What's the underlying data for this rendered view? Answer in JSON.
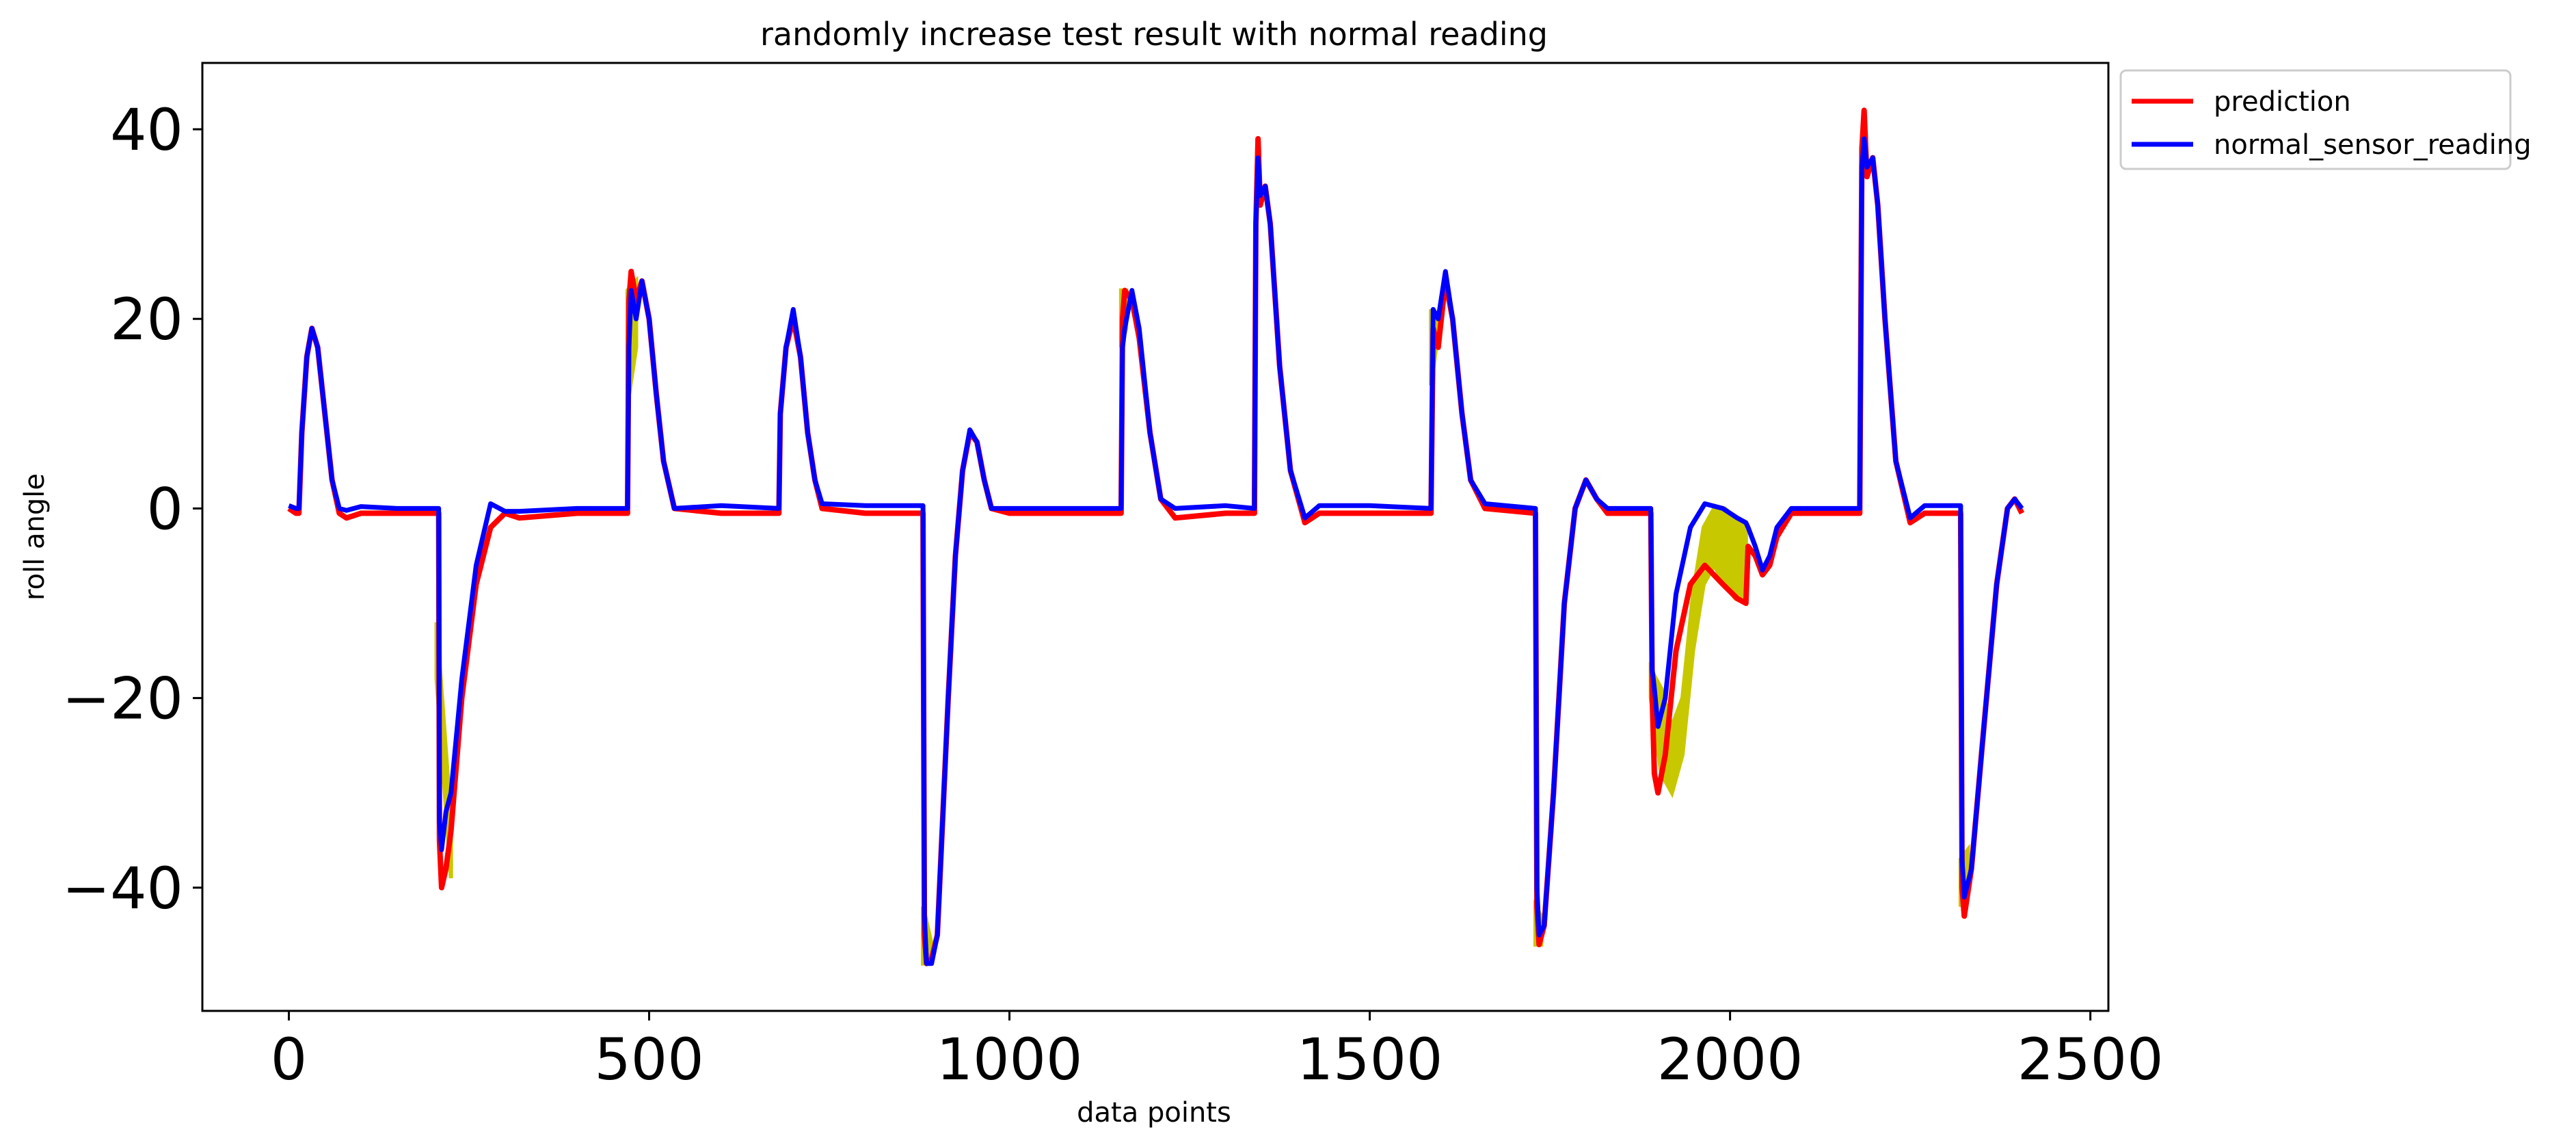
{
  "chart_data": {
    "type": "line",
    "title": "randomly increase test result with normal reading",
    "xlabel": "data points",
    "ylabel": "roll angle",
    "xlim": [
      -120,
      2525
    ],
    "ylim": [
      -53,
      47
    ],
    "xticks": [
      0,
      500,
      1000,
      1500,
      2000,
      2500
    ],
    "yticks": [
      40,
      20,
      0,
      -20,
      -40
    ],
    "xtick_labels": [
      "0",
      "500",
      "1000",
      "1500",
      "2000",
      "2500"
    ],
    "ytick_labels": [
      "40",
      "20",
      "0",
      "−20",
      "−40"
    ],
    "grid": false,
    "legend_position": "outside top-right",
    "colors": {
      "prediction": "#ff0000",
      "normal_sensor_reading": "#0000ff",
      "test_band": "#c8c800"
    },
    "series": [
      {
        "name": "prediction",
        "color": "#ff0000",
        "points": [
          [
            0,
            0
          ],
          [
            10,
            -0.5
          ],
          [
            14,
            -0.5
          ],
          [
            18,
            8
          ],
          [
            25,
            16
          ],
          [
            32,
            19
          ],
          [
            40,
            17
          ],
          [
            50,
            10
          ],
          [
            60,
            3
          ],
          [
            70,
            -0.5
          ],
          [
            80,
            -1
          ],
          [
            100,
            -0.5
          ],
          [
            150,
            -0.5
          ],
          [
            200,
            -0.5
          ],
          [
            208,
            -0.5
          ],
          [
            209,
            -35
          ],
          [
            212,
            -40
          ],
          [
            218,
            -38
          ],
          [
            225,
            -34
          ],
          [
            240,
            -20
          ],
          [
            260,
            -8
          ],
          [
            280,
            -2
          ],
          [
            300,
            -0.5
          ],
          [
            320,
            -1
          ],
          [
            400,
            -0.5
          ],
          [
            470,
            -0.5
          ],
          [
            472,
            22
          ],
          [
            475,
            25
          ],
          [
            482,
            22
          ],
          [
            490,
            24
          ],
          [
            500,
            20
          ],
          [
            510,
            12
          ],
          [
            520,
            5
          ],
          [
            535,
            0
          ],
          [
            600,
            -0.5
          ],
          [
            680,
            -0.5
          ],
          [
            682,
            10
          ],
          [
            690,
            17
          ],
          [
            700,
            20
          ],
          [
            710,
            16
          ],
          [
            720,
            8
          ],
          [
            730,
            3
          ],
          [
            740,
            0
          ],
          [
            800,
            -0.5
          ],
          [
            880,
            -0.5
          ],
          [
            882,
            -45
          ],
          [
            885,
            -48
          ],
          [
            892,
            -47.5
          ],
          [
            900,
            -45
          ],
          [
            915,
            -20
          ],
          [
            925,
            -5
          ],
          [
            935,
            4
          ],
          [
            945,
            8
          ],
          [
            955,
            7
          ],
          [
            965,
            3
          ],
          [
            975,
            0
          ],
          [
            1000,
            -0.5
          ],
          [
            1100,
            -0.5
          ],
          [
            1155,
            -0.5
          ],
          [
            1157,
            20
          ],
          [
            1160,
            23
          ],
          [
            1170,
            22
          ],
          [
            1180,
            18
          ],
          [
            1195,
            8
          ],
          [
            1210,
            1
          ],
          [
            1230,
            -1
          ],
          [
            1300,
            -0.5
          ],
          [
            1340,
            -0.5
          ],
          [
            1342,
            30
          ],
          [
            1345,
            39
          ],
          [
            1348,
            32
          ],
          [
            1355,
            34
          ],
          [
            1362,
            30
          ],
          [
            1375,
            15
          ],
          [
            1390,
            4
          ],
          [
            1410,
            -1.5
          ],
          [
            1430,
            -0.5
          ],
          [
            1500,
            -0.5
          ],
          [
            1585,
            -0.5
          ],
          [
            1588,
            19
          ],
          [
            1595,
            17
          ],
          [
            1605,
            24
          ],
          [
            1615,
            20
          ],
          [
            1628,
            10
          ],
          [
            1640,
            3
          ],
          [
            1660,
            0
          ],
          [
            1730,
            -0.5
          ],
          [
            1732,
            -42
          ],
          [
            1735,
            -46
          ],
          [
            1742,
            -44
          ],
          [
            1755,
            -30
          ],
          [
            1770,
            -10
          ],
          [
            1785,
            0
          ],
          [
            1800,
            3
          ],
          [
            1815,
            1
          ],
          [
            1830,
            -0.5
          ],
          [
            1880,
            -0.5
          ],
          [
            1890,
            -0.5
          ],
          [
            1892,
            -20
          ],
          [
            1895,
            -28
          ],
          [
            1900,
            -30
          ],
          [
            1910,
            -26
          ],
          [
            1925,
            -15
          ],
          [
            1945,
            -8
          ],
          [
            1965,
            -6
          ],
          [
            1990,
            -8
          ],
          [
            2010,
            -9.5
          ],
          [
            2022,
            -10
          ],
          [
            2025,
            -4
          ],
          [
            2035,
            -5
          ],
          [
            2045,
            -7
          ],
          [
            2055,
            -6
          ],
          [
            2065,
            -3
          ],
          [
            2085,
            -0.5
          ],
          [
            2100,
            -0.5
          ],
          [
            2180,
            -0.5
          ],
          [
            2183,
            38
          ],
          [
            2186,
            42
          ],
          [
            2190,
            35
          ],
          [
            2198,
            37
          ],
          [
            2205,
            32
          ],
          [
            2215,
            20
          ],
          [
            2230,
            5
          ],
          [
            2250,
            -1.5
          ],
          [
            2270,
            -0.5
          ],
          [
            2320,
            -0.5
          ],
          [
            2322,
            -40
          ],
          [
            2325,
            -43
          ],
          [
            2335,
            -38
          ],
          [
            2350,
            -25
          ],
          [
            2370,
            -8
          ],
          [
            2385,
            0
          ],
          [
            2395,
            1
          ],
          [
            2405,
            -0.5
          ]
        ]
      },
      {
        "name": "normal_sensor_reading",
        "color": "#0000ff",
        "points": [
          [
            0,
            0.3
          ],
          [
            10,
            0
          ],
          [
            14,
            0
          ],
          [
            18,
            8
          ],
          [
            25,
            16
          ],
          [
            32,
            19
          ],
          [
            40,
            17
          ],
          [
            50,
            10
          ],
          [
            60,
            3
          ],
          [
            70,
            0
          ],
          [
            80,
            -0.2
          ],
          [
            100,
            0.2
          ],
          [
            150,
            0
          ],
          [
            200,
            0
          ],
          [
            208,
            0
          ],
          [
            209,
            -33
          ],
          [
            212,
            -36
          ],
          [
            218,
            -32
          ],
          [
            225,
            -30
          ],
          [
            240,
            -18
          ],
          [
            260,
            -6
          ],
          [
            280,
            0.5
          ],
          [
            300,
            -0.3
          ],
          [
            320,
            -0.3
          ],
          [
            400,
            0
          ],
          [
            470,
            0
          ],
          [
            472,
            17
          ],
          [
            475,
            23
          ],
          [
            482,
            20
          ],
          [
            490,
            24
          ],
          [
            500,
            20
          ],
          [
            510,
            12
          ],
          [
            520,
            5
          ],
          [
            535,
            0
          ],
          [
            600,
            0.3
          ],
          [
            680,
            0
          ],
          [
            682,
            10
          ],
          [
            690,
            17
          ],
          [
            700,
            21
          ],
          [
            710,
            16
          ],
          [
            720,
            8
          ],
          [
            730,
            3
          ],
          [
            740,
            0.5
          ],
          [
            800,
            0.3
          ],
          [
            880,
            0.3
          ],
          [
            882,
            -43
          ],
          [
            885,
            -48
          ],
          [
            892,
            -48
          ],
          [
            900,
            -45
          ],
          [
            915,
            -20
          ],
          [
            925,
            -5
          ],
          [
            935,
            4
          ],
          [
            945,
            8.3
          ],
          [
            955,
            7
          ],
          [
            965,
            3
          ],
          [
            975,
            0
          ],
          [
            1000,
            0
          ],
          [
            1100,
            0
          ],
          [
            1155,
            0
          ],
          [
            1157,
            17
          ],
          [
            1160,
            19
          ],
          [
            1170,
            23
          ],
          [
            1180,
            19
          ],
          [
            1195,
            8
          ],
          [
            1210,
            1
          ],
          [
            1230,
            0
          ],
          [
            1300,
            0.3
          ],
          [
            1340,
            0
          ],
          [
            1342,
            30
          ],
          [
            1345,
            37
          ],
          [
            1348,
            33
          ],
          [
            1355,
            34
          ],
          [
            1362,
            30
          ],
          [
            1375,
            15
          ],
          [
            1390,
            4
          ],
          [
            1410,
            -1
          ],
          [
            1430,
            0.3
          ],
          [
            1500,
            0.3
          ],
          [
            1585,
            0
          ],
          [
            1588,
            21
          ],
          [
            1595,
            20
          ],
          [
            1605,
            25
          ],
          [
            1615,
            20
          ],
          [
            1628,
            10
          ],
          [
            1640,
            3
          ],
          [
            1660,
            0.5
          ],
          [
            1730,
            0
          ],
          [
            1732,
            -40
          ],
          [
            1735,
            -45
          ],
          [
            1742,
            -44
          ],
          [
            1755,
            -30
          ],
          [
            1770,
            -10
          ],
          [
            1785,
            0
          ],
          [
            1800,
            3
          ],
          [
            1815,
            1
          ],
          [
            1830,
            0
          ],
          [
            1880,
            0
          ],
          [
            1890,
            0
          ],
          [
            1892,
            -17
          ],
          [
            1895,
            -19
          ],
          [
            1900,
            -23
          ],
          [
            1910,
            -20
          ],
          [
            1925,
            -9
          ],
          [
            1945,
            -2
          ],
          [
            1965,
            0.5
          ],
          [
            1990,
            0
          ],
          [
            2010,
            -1
          ],
          [
            2022,
            -1.5
          ],
          [
            2025,
            -2
          ],
          [
            2035,
            -4
          ],
          [
            2045,
            -6.5
          ],
          [
            2055,
            -5
          ],
          [
            2065,
            -2
          ],
          [
            2085,
            0
          ],
          [
            2100,
            0
          ],
          [
            2180,
            0
          ],
          [
            2183,
            36
          ],
          [
            2186,
            39
          ],
          [
            2190,
            36
          ],
          [
            2198,
            37
          ],
          [
            2205,
            32
          ],
          [
            2215,
            20
          ],
          [
            2230,
            5
          ],
          [
            2250,
            -1
          ],
          [
            2270,
            0.3
          ],
          [
            2320,
            0.3
          ],
          [
            2322,
            -37
          ],
          [
            2325,
            -41
          ],
          [
            2335,
            -38
          ],
          [
            2350,
            -25
          ],
          [
            2370,
            -8
          ],
          [
            2385,
            0
          ],
          [
            2395,
            1
          ],
          [
            2405,
            0
          ]
        ]
      }
    ],
    "test_bands": [
      {
        "x": [
          205,
          225
        ],
        "y_top": [
          -12,
          -33
        ],
        "y_bottom": [
          -18,
          -39
        ]
      },
      {
        "x": [
          470,
          482
        ],
        "y_top": [
          23,
          24
        ],
        "y_bottom": [
          11,
          17
        ]
      },
      {
        "x": [
          880,
          892
        ],
        "y_top": [
          -42,
          -46
        ],
        "y_bottom": [
          -48,
          -48
        ]
      },
      {
        "x": [
          1155,
          1162
        ],
        "y_top": [
          23,
          23
        ],
        "y_bottom": [
          17,
          19
        ]
      },
      {
        "x": [
          1585,
          1592
        ],
        "y_top": [
          21,
          20
        ],
        "y_bottom": [
          13,
          17
        ]
      },
      {
        "x": [
          1730,
          1738
        ],
        "y_top": [
          -42,
          -43
        ],
        "y_bottom": [
          -46,
          -46
        ]
      },
      {
        "x": [
          1890,
          2022
        ],
        "y_top": [
          -17,
          -19,
          -23,
          -20,
          -9,
          -2,
          0,
          0,
          -1,
          -1.5
        ],
        "y_bottom": [
          -20,
          -28,
          -30,
          -26,
          -15,
          -8,
          -6,
          -8,
          -9.5,
          -10
        ]
      },
      {
        "x": [
          2320,
          2330
        ],
        "y_top": [
          -37,
          -36
        ],
        "y_bottom": [
          -42,
          -40
        ]
      }
    ]
  }
}
